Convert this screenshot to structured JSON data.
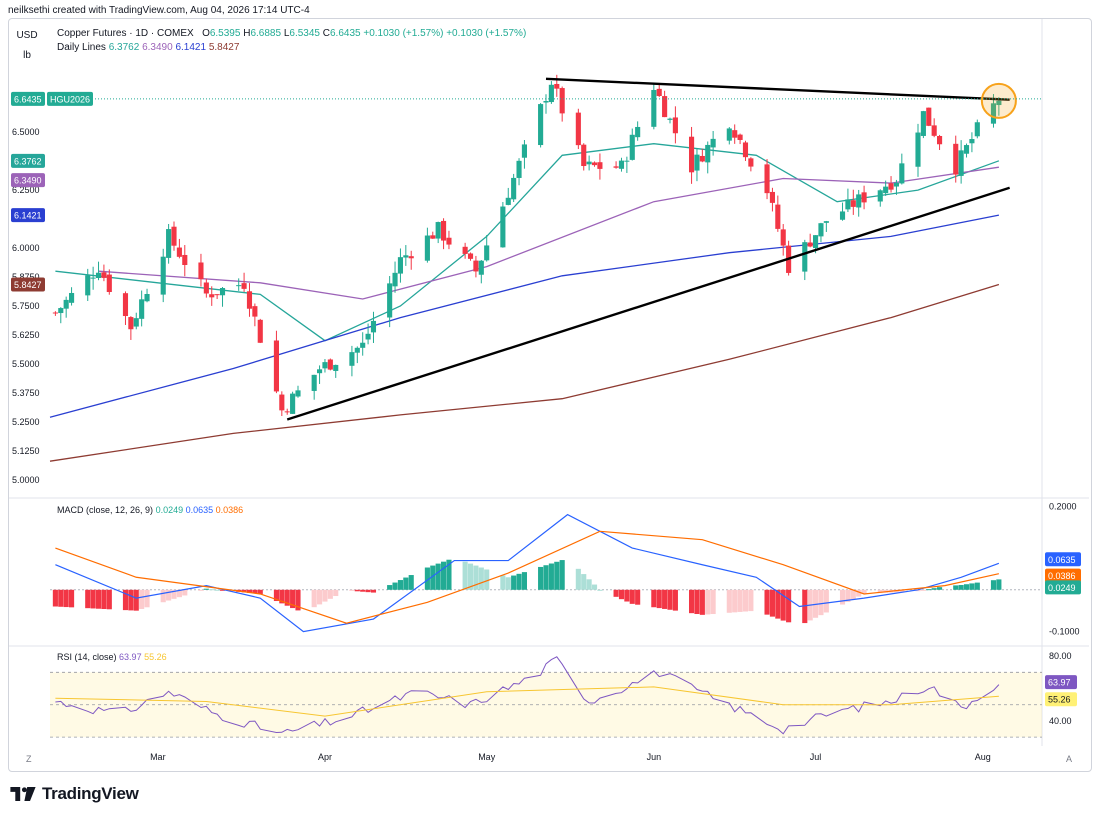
{
  "caption": "neilksethi created with TradingView.com, Aug 04, 2026 17:14 UTC-4",
  "units": {
    "currency": "USD",
    "unit": "lb"
  },
  "legend": {
    "symbol_line": "Copper Futures · 1D · COMEX",
    "ohlc": {
      "o_label": "O",
      "o": "6.5395",
      "h_label": "H",
      "h": "6.6885",
      "l_label": "L",
      "l": "6.5345",
      "c_label": "C",
      "c": "6.6435"
    },
    "change1": "+0.1030 (+1.57%)",
    "change2": "+0.1030 (+1.57%)",
    "daily_lines_label": "Daily Lines",
    "daily_lines_values": [
      "6.3762",
      "6.3490",
      "6.1421",
      "5.8427"
    ]
  },
  "macd_legend": {
    "label": "MACD (close, 12, 26, 9)",
    "values": [
      "0.0249",
      "0.0635",
      "0.0386"
    ]
  },
  "rsi_legend": {
    "label": "RSI (14, close)",
    "values": [
      "63.97",
      "55.26"
    ]
  },
  "corner_left": "Z",
  "corner_right": "A",
  "brand": "TradingView",
  "colors": {
    "up": "#22ab94",
    "down": "#f23645",
    "sma20": "#26a69a",
    "sma50": "#9c63b8",
    "sma100": "#2a3fd1",
    "sma200": "#8e3b32",
    "macd": "#2962ff",
    "signal": "#ff6d00",
    "rsi": "#7e57c2",
    "rsi_ma": "#f7c631",
    "trend": "#000000",
    "highlight": "#f7a21b"
  },
  "chart_data": [
    {
      "type": "candlestick",
      "title": "Copper Futures · 1D · COMEX",
      "ylim": [
        4.93,
        6.82
      ],
      "y_ticks": [
        "5.0000",
        "5.1250",
        "5.2500",
        "5.3750",
        "5.5000",
        "5.6250",
        "5.7500",
        "5.8750",
        "6.0000",
        "6.1250",
        "6.2500",
        "6.3750",
        "6.5000"
      ],
      "x_ticks": [
        "Mar",
        "Apr",
        "May",
        "Jun",
        "Jul",
        "Aug"
      ],
      "x_range": [
        "2026-02-09",
        "2026-08-12"
      ],
      "last_price_label": "6.6435",
      "last_symbol_label": "HGU2026",
      "ma_labels": [
        "6.3762",
        "6.3490",
        "6.1421",
        "5.8427"
      ],
      "ohlc_keypoints": [
        [
          "2026-02-10",
          5.72
        ],
        [
          "2026-02-18",
          5.92
        ],
        [
          "2026-02-24",
          5.66
        ],
        [
          "2026-03-03",
          6.05
        ],
        [
          "2026-03-10",
          5.8
        ],
        [
          "2026-03-17",
          5.85
        ],
        [
          "2026-03-24",
          5.3
        ],
        [
          "2026-03-31",
          5.48
        ],
        [
          "2026-04-08",
          5.58
        ],
        [
          "2026-04-15",
          5.95
        ],
        [
          "2026-04-22",
          6.08
        ],
        [
          "2026-04-29",
          5.9
        ],
        [
          "2026-05-06",
          6.3
        ],
        [
          "2026-05-13",
          6.72
        ],
        [
          "2026-05-19",
          6.35
        ],
        [
          "2026-05-26",
          6.35
        ],
        [
          "2026-06-01",
          6.7
        ],
        [
          "2026-06-08",
          6.35
        ],
        [
          "2026-06-15",
          6.55
        ],
        [
          "2026-06-22",
          6.25
        ],
        [
          "2026-06-26",
          5.92
        ],
        [
          "2026-07-03",
          6.12
        ],
        [
          "2026-07-10",
          6.22
        ],
        [
          "2026-07-16",
          6.3
        ],
        [
          "2026-07-21",
          6.58
        ],
        [
          "2026-07-27",
          6.35
        ],
        [
          "2026-08-01",
          6.55
        ],
        [
          "2026-08-04",
          6.6435
        ]
      ],
      "moving_averages": {
        "sma20": [
          [
            "2026-02-10",
            5.9
          ],
          [
            "2026-03-01",
            5.85
          ],
          [
            "2026-03-20",
            5.8
          ],
          [
            "2026-04-01",
            5.6
          ],
          [
            "2026-04-15",
            5.75
          ],
          [
            "2026-05-01",
            6.05
          ],
          [
            "2026-05-15",
            6.4
          ],
          [
            "2026-06-01",
            6.45
          ],
          [
            "2026-06-20",
            6.4
          ],
          [
            "2026-07-05",
            6.2
          ],
          [
            "2026-07-20",
            6.25
          ],
          [
            "2026-08-04",
            6.3762
          ]
        ],
        "sma50": [
          [
            "2026-02-18",
            5.9
          ],
          [
            "2026-03-20",
            5.85
          ],
          [
            "2026-04-08",
            5.78
          ],
          [
            "2026-05-01",
            5.92
          ],
          [
            "2026-06-01",
            6.2
          ],
          [
            "2026-06-25",
            6.3
          ],
          [
            "2026-07-15",
            6.28
          ],
          [
            "2026-08-04",
            6.349
          ]
        ],
        "sma100": [
          [
            "2026-02-09",
            5.27
          ],
          [
            "2026-03-15",
            5.48
          ],
          [
            "2026-04-15",
            5.7
          ],
          [
            "2026-05-15",
            5.88
          ],
          [
            "2026-06-15",
            5.98
          ],
          [
            "2026-07-15",
            6.05
          ],
          [
            "2026-08-04",
            6.1421
          ]
        ],
        "sma200": [
          [
            "2026-02-09",
            5.08
          ],
          [
            "2026-03-15",
            5.2
          ],
          [
            "2026-04-15",
            5.28
          ],
          [
            "2026-05-15",
            5.35
          ],
          [
            "2026-06-15",
            5.52
          ],
          [
            "2026-07-15",
            5.7
          ],
          [
            "2026-08-04",
            5.8427
          ]
        ]
      },
      "trendlines": [
        {
          "from": [
            "2026-03-25",
            5.26
          ],
          "to": [
            "2026-08-06",
            6.26
          ]
        },
        {
          "from": [
            "2026-05-12",
            6.73
          ],
          "to": [
            "2026-08-06",
            6.64
          ]
        }
      ]
    },
    {
      "type": "macd",
      "title": "MACD (close, 12, 26, 9)",
      "ylim": [
        -0.125,
        0.215
      ],
      "y_ticks": [
        "0.2000",
        "0.0000",
        "-0.1000"
      ],
      "last_labels": [
        "0.0635",
        "0.0386",
        "0.0249"
      ],
      "macd_keypoints": [
        [
          "2026-02-10",
          0.06
        ],
        [
          "2026-02-25",
          -0.02
        ],
        [
          "2026-03-10",
          0.01
        ],
        [
          "2026-03-20",
          -0.02
        ],
        [
          "2026-03-28",
          -0.1
        ],
        [
          "2026-04-10",
          -0.07
        ],
        [
          "2026-04-25",
          0.07
        ],
        [
          "2026-05-05",
          0.07
        ],
        [
          "2026-05-16",
          0.18
        ],
        [
          "2026-05-28",
          0.1
        ],
        [
          "2026-06-10",
          0.06
        ],
        [
          "2026-06-20",
          0.03
        ],
        [
          "2026-06-28",
          -0.04
        ],
        [
          "2026-07-10",
          -0.02
        ],
        [
          "2026-07-20",
          0.0
        ],
        [
          "2026-07-28",
          0.03
        ],
        [
          "2026-08-04",
          0.0635
        ]
      ],
      "signal_keypoints": [
        [
          "2026-02-10",
          0.1
        ],
        [
          "2026-02-25",
          0.03
        ],
        [
          "2026-03-20",
          -0.01
        ],
        [
          "2026-04-05",
          -0.08
        ],
        [
          "2026-04-20",
          -0.03
        ],
        [
          "2026-05-05",
          0.04
        ],
        [
          "2026-05-22",
          0.14
        ],
        [
          "2026-06-10",
          0.12
        ],
        [
          "2026-06-25",
          0.06
        ],
        [
          "2026-07-10",
          -0.01
        ],
        [
          "2026-07-25",
          0.01
        ],
        [
          "2026-08-04",
          0.0386
        ]
      ],
      "hist_last": 0.0249
    },
    {
      "type": "line",
      "title": "RSI (14, close)",
      "ylim": [
        27,
        85
      ],
      "y_ticks": [
        "80.00",
        "40.00"
      ],
      "bands": [
        70,
        50,
        30
      ],
      "last_labels": [
        "63.97",
        "55.26"
      ],
      "rsi_keypoints": [
        [
          "2026-02-10",
          52
        ],
        [
          "2026-02-22",
          44
        ],
        [
          "2026-03-03",
          58
        ],
        [
          "2026-03-12",
          44
        ],
        [
          "2026-03-24",
          32
        ],
        [
          "2026-04-05",
          42
        ],
        [
          "2026-04-18",
          58
        ],
        [
          "2026-04-28",
          50
        ],
        [
          "2026-05-10",
          68
        ],
        [
          "2026-05-14",
          78
        ],
        [
          "2026-05-20",
          52
        ],
        [
          "2026-06-02",
          70
        ],
        [
          "2026-06-12",
          54
        ],
        [
          "2026-06-25",
          35
        ],
        [
          "2026-07-05",
          46
        ],
        [
          "2026-07-15",
          52
        ],
        [
          "2026-07-22",
          62
        ],
        [
          "2026-07-28",
          48
        ],
        [
          "2026-08-04",
          63.97
        ]
      ],
      "rsi_ma_keypoints": [
        [
          "2026-02-10",
          54
        ],
        [
          "2026-03-10",
          52
        ],
        [
          "2026-04-01",
          43
        ],
        [
          "2026-05-01",
          58
        ],
        [
          "2026-06-01",
          61
        ],
        [
          "2026-06-25",
          50
        ],
        [
          "2026-07-15",
          50
        ],
        [
          "2026-08-04",
          55.26
        ]
      ]
    }
  ]
}
